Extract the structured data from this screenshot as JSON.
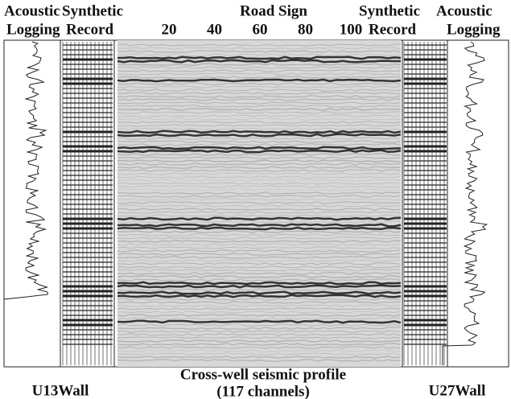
{
  "left_well": {
    "logging_label": [
      "Acoustic",
      "Logging"
    ],
    "record_label": [
      "Synthetic",
      "Record"
    ],
    "name": "U13Wall"
  },
  "right_well": {
    "record_label": [
      "Synthetic",
      "Record"
    ],
    "logging_label": [
      "Acoustic",
      "Logging"
    ],
    "name": "U27Wall"
  },
  "profile": {
    "axis_title": "Road Sign",
    "ticks": [
      20,
      40,
      60,
      80,
      100
    ],
    "caption": [
      "Cross-well seismic profile",
      "(117 channels)"
    ]
  }
}
